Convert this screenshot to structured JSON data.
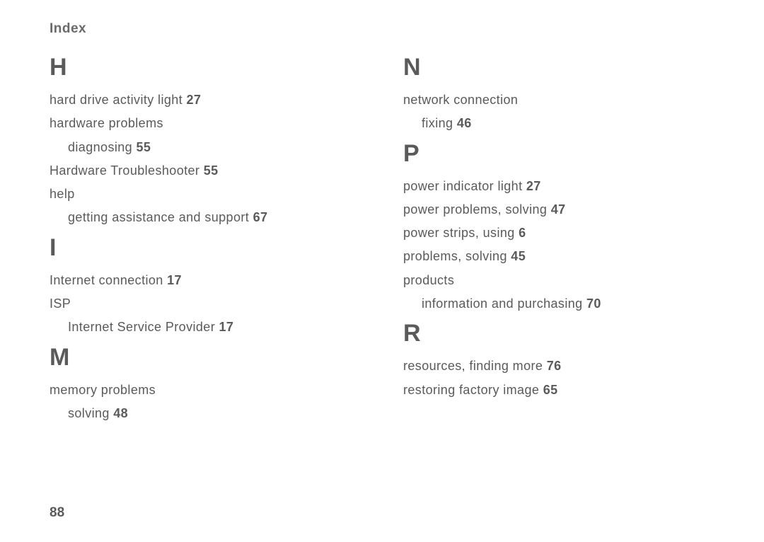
{
  "header": "Index",
  "pageNumber": "88",
  "left": [
    {
      "letter": "H",
      "entries": [
        {
          "text": "hard drive activity light",
          "page": "27"
        },
        {
          "text": "hardware problems"
        },
        {
          "text": "diagnosing",
          "page": "55",
          "indent": true
        },
        {
          "text": "Hardware Troubleshooter",
          "page": "55"
        },
        {
          "text": "help"
        },
        {
          "text": "getting assistance and support",
          "page": "67",
          "indent": true
        }
      ]
    },
    {
      "letter": "I",
      "entries": [
        {
          "text": "Internet connection",
          "page": "17"
        },
        {
          "text": "ISP"
        },
        {
          "text": "Internet Service Provider",
          "page": "17",
          "indent": true
        }
      ]
    },
    {
      "letter": "M",
      "entries": [
        {
          "text": "memory problems"
        },
        {
          "text": "solving",
          "page": "48",
          "indent": true
        }
      ]
    }
  ],
  "right": [
    {
      "letter": "N",
      "entries": [
        {
          "text": "network connection"
        },
        {
          "text": "fixing",
          "page": "46",
          "indent": true
        }
      ]
    },
    {
      "letter": "P",
      "entries": [
        {
          "text": "power indicator light",
          "page": "27"
        },
        {
          "text": "power problems, solving",
          "page": "47"
        },
        {
          "text": "power strips, using",
          "page": "6"
        },
        {
          "text": "problems, solving",
          "page": "45"
        },
        {
          "text": "products"
        },
        {
          "text": "information and purchasing",
          "page": "70",
          "indent": true
        }
      ]
    },
    {
      "letter": "R",
      "entries": [
        {
          "text": "resources, finding more",
          "page": "76"
        },
        {
          "text": "restoring factory image",
          "page": "65"
        }
      ]
    }
  ]
}
